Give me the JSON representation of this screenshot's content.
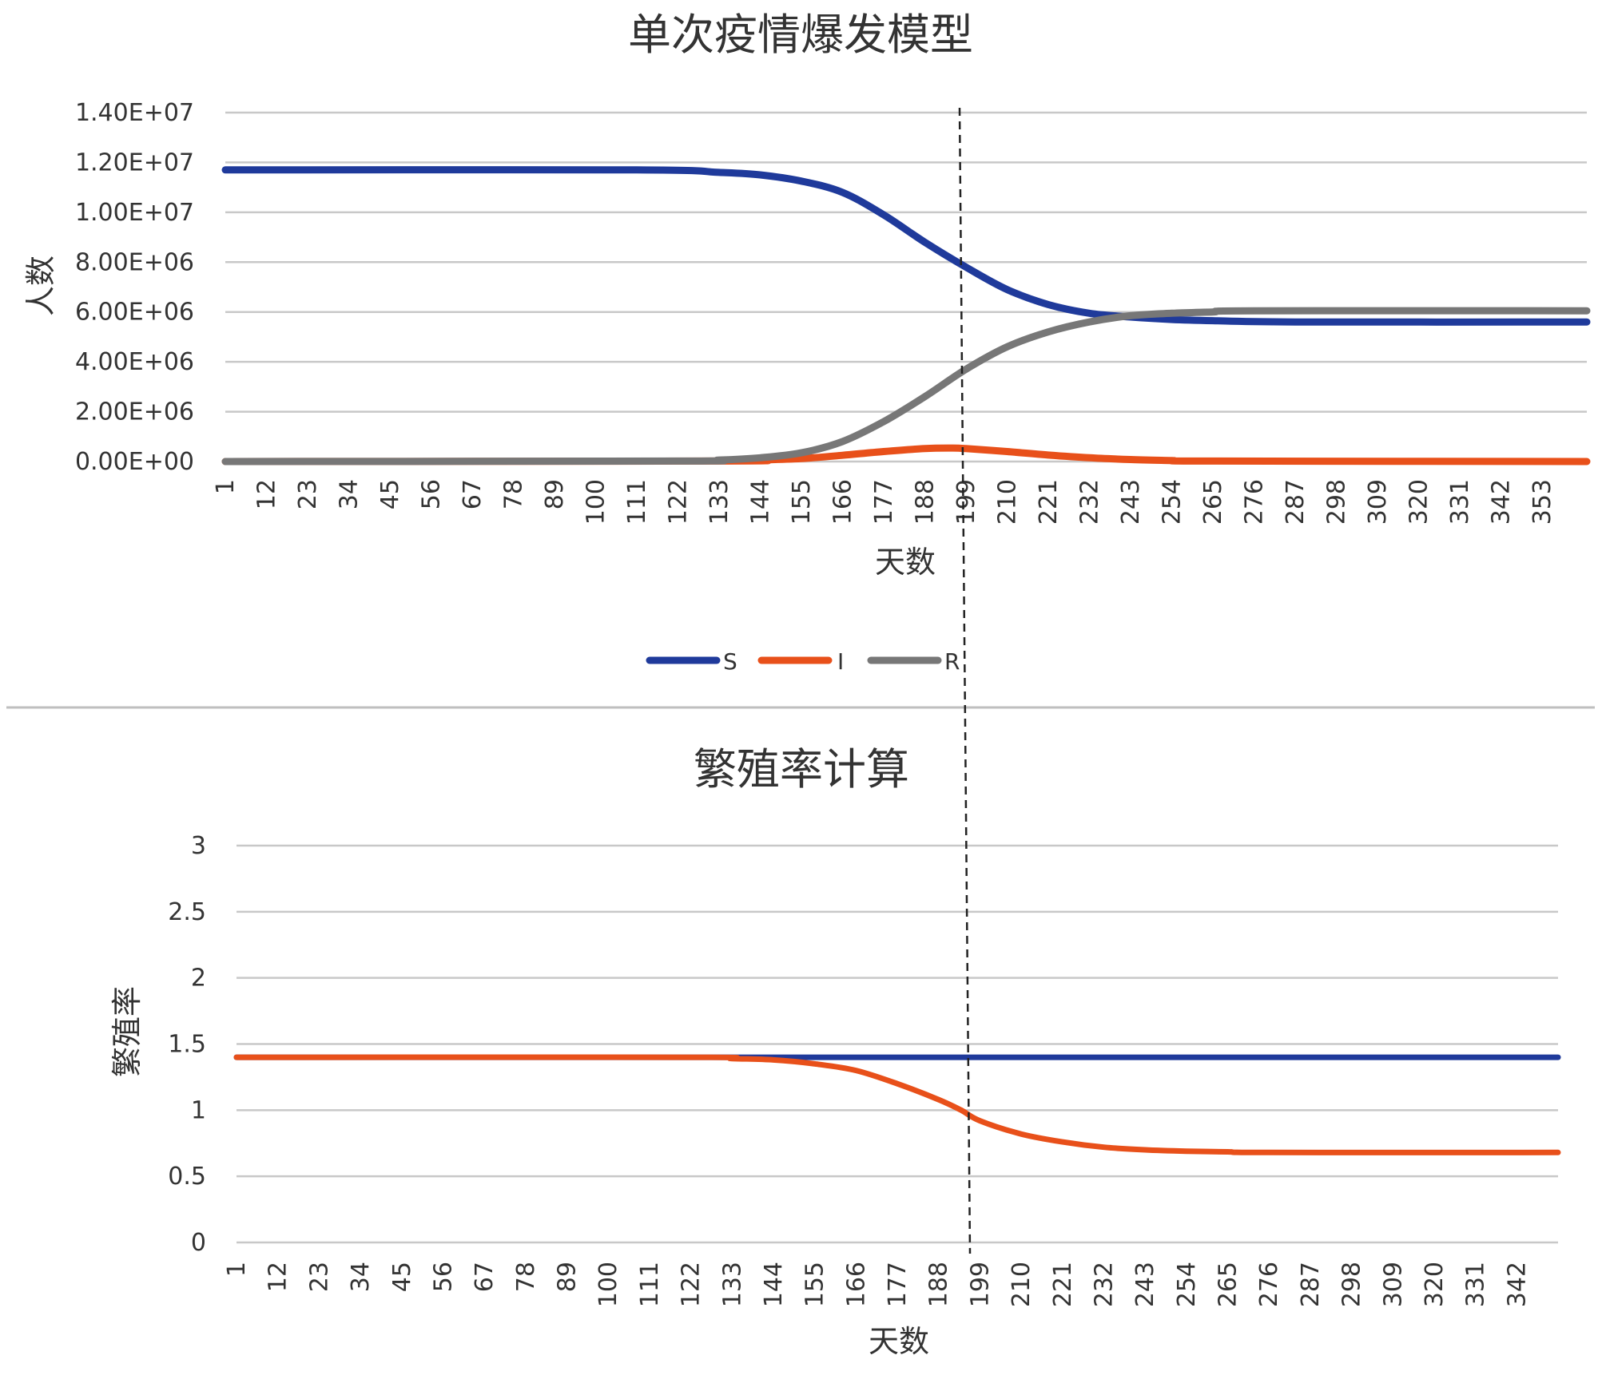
{
  "chart_data": [
    {
      "type": "line",
      "title": "单次疫情爆发模型",
      "xlabel": "天数",
      "ylabel": "人数",
      "ylim": [
        0,
        14000000
      ],
      "yticks": [
        "0.00E+00",
        "2.00E+06",
        "4.00E+06",
        "6.00E+06",
        "8.00E+06",
        "1.00E+07",
        "1.20E+07",
        "1.40E+07"
      ],
      "xticks": [
        "1",
        "12",
        "23",
        "34",
        "45",
        "56",
        "67",
        "78",
        "89",
        "100",
        "111",
        "122",
        "133",
        "144",
        "155",
        "166",
        "177",
        "188",
        "199",
        "210",
        "221",
        "232",
        "243",
        "254",
        "265",
        "276",
        "287",
        "298",
        "309",
        "320",
        "331",
        "342",
        "353"
      ],
      "x_range": [
        1,
        365
      ],
      "grid": true,
      "legend": "bottom",
      "series": [
        {
          "name": "S",
          "color": "#1f3a9b",
          "x": [
            1,
            111,
            133,
            144,
            155,
            166,
            177,
            188,
            199,
            210,
            221,
            232,
            243,
            254,
            265,
            287,
            365
          ],
          "y": [
            11700000,
            11700000,
            11600000,
            11500000,
            11250000,
            10800000,
            9900000,
            8800000,
            7800000,
            6900000,
            6300000,
            5950000,
            5800000,
            5700000,
            5650000,
            5600000,
            5600000
          ]
        },
        {
          "name": "I",
          "color": "#e8501a",
          "x": [
            1,
            133,
            144,
            155,
            166,
            177,
            188,
            195,
            199,
            210,
            221,
            232,
            243,
            254,
            265,
            365
          ],
          "y": [
            0,
            20000,
            60000,
            120000,
            250000,
            400000,
            520000,
            540000,
            520000,
            400000,
            260000,
            150000,
            80000,
            40000,
            20000,
            0
          ]
        },
        {
          "name": "R",
          "color": "#777777",
          "x": [
            1,
            122,
            133,
            144,
            155,
            166,
            177,
            188,
            199,
            210,
            221,
            232,
            243,
            254,
            265,
            276,
            365
          ],
          "y": [
            0,
            20000,
            60000,
            150000,
            350000,
            800000,
            1600000,
            2600000,
            3700000,
            4600000,
            5200000,
            5600000,
            5850000,
            5950000,
            6000000,
            6050000,
            6050000
          ]
        }
      ],
      "annotations": [
        {
          "type": "vline",
          "x": 196,
          "style": "dashed"
        }
      ]
    },
    {
      "type": "line",
      "title": "繁殖率计算",
      "xlabel": "天数",
      "ylabel": "繁殖率",
      "ylim": [
        0,
        3
      ],
      "yticks": [
        "0",
        "0.5",
        "1",
        "1.5",
        "2",
        "2.5",
        "3"
      ],
      "xticks": [
        "1",
        "12",
        "23",
        "34",
        "45",
        "56",
        "67",
        "78",
        "89",
        "100",
        "111",
        "122",
        "133",
        "144",
        "155",
        "166",
        "177",
        "188",
        "199",
        "210",
        "221",
        "232",
        "243",
        "254",
        "265",
        "276",
        "287",
        "298",
        "309",
        "320",
        "331",
        "342"
      ],
      "x_range": [
        1,
        353
      ],
      "grid": true,
      "legend": "none",
      "series": [
        {
          "color": "#1f3a9b",
          "x": [
            1,
            353
          ],
          "y": [
            1.4,
            1.4
          ]
        },
        {
          "color": "#e8501a",
          "x": [
            1,
            122,
            133,
            144,
            155,
            166,
            177,
            188,
            194,
            199,
            210,
            221,
            232,
            243,
            254,
            265,
            276,
            353
          ],
          "y": [
            1.4,
            1.4,
            1.39,
            1.38,
            1.35,
            1.3,
            1.2,
            1.08,
            1.0,
            0.92,
            0.82,
            0.76,
            0.72,
            0.7,
            0.69,
            0.685,
            0.68,
            0.68
          ]
        }
      ],
      "annotations": [
        {
          "type": "vline",
          "x": 194,
          "style": "dashed"
        }
      ]
    }
  ]
}
